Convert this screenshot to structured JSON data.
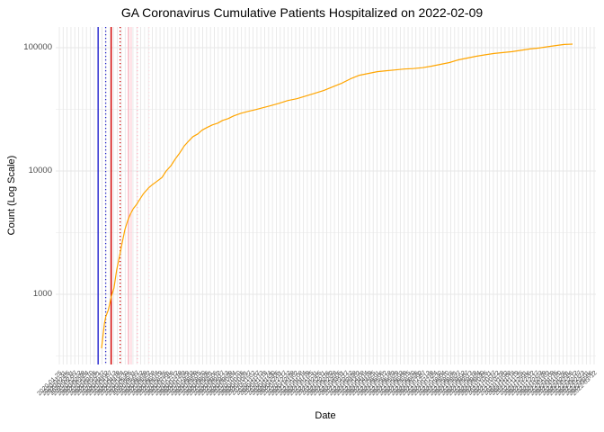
{
  "figure": {
    "title": "GA Coronavirus Cumulative Patients Hospitalized on 2022-02-09",
    "x_axis_title": "Date",
    "y_axis_title": "Count (Log Scale)"
  },
  "colors": {
    "background": "#ffffff",
    "gridline": "#e7e7e7",
    "series_orange": "#FFA500",
    "ref_blue": "#2222CC",
    "ref_red": "#D40000",
    "ref_pink": "#FFB3C0",
    "ref_pink_light": "#FFD9E0",
    "tick_text": "#4d4d4d",
    "title_text": "#000000"
  },
  "chart_data": {
    "type": "line",
    "title": "GA Coronavirus Cumulative Patients Hospitalized on 2022-02-09",
    "xlabel": "Date",
    "ylabel": "Count (Log Scale)",
    "y_scale": "log10",
    "y_ticks": [
      1000,
      10000,
      100000
    ],
    "y_tick_labels": [
      "1000",
      "10000",
      "100000"
    ],
    "ylim": [
      270,
      145000
    ],
    "grid": "major and minor horizontal log gridlines + dense vertical date gridlines, light gray on white",
    "legend_position": "none",
    "x_tick_note": "~139 rotated (45°) date tick labels, heavily overlapping and illegible in the source image; dates below are evenly-spaced estimates",
    "x_ticks_generated": {
      "first_date": "2020-01-25",
      "step_days": 5.63,
      "count": 139
    },
    "x_range_dates": [
      "2020-03-26",
      "2022-02-09"
    ],
    "series": [
      {
        "name": "cumulative-patients-hospitalized",
        "color": "#FFA500",
        "points": [
          [
            "2020-03-26",
            365
          ],
          [
            "2020-03-30",
            575
          ],
          [
            "2020-04-01",
            655
          ],
          [
            "2020-04-05",
            750
          ],
          [
            "2020-04-09",
            950
          ],
          [
            "2020-04-13",
            1125
          ],
          [
            "2020-04-17",
            1575
          ],
          [
            "2020-04-21",
            2025
          ],
          [
            "2020-04-25",
            2610
          ],
          [
            "2020-04-29",
            3355
          ],
          [
            "2020-05-03",
            3970
          ],
          [
            "2020-05-07",
            4470
          ],
          [
            "2020-05-11",
            4935
          ],
          [
            "2020-05-16",
            5360
          ],
          [
            "2020-05-21",
            5930
          ],
          [
            "2020-05-26",
            6555
          ],
          [
            "2020-06-02",
            7250
          ],
          [
            "2020-06-08",
            7755
          ],
          [
            "2020-06-15",
            8290
          ],
          [
            "2020-06-22",
            8870
          ],
          [
            "2020-06-28",
            10000
          ],
          [
            "2020-07-05",
            11070
          ],
          [
            "2020-07-11",
            12490
          ],
          [
            "2020-07-18",
            14090
          ],
          [
            "2020-07-24",
            15900
          ],
          [
            "2020-07-31",
            17600
          ],
          [
            "2020-08-06",
            19000
          ],
          [
            "2020-08-13",
            19980
          ],
          [
            "2020-08-19",
            21400
          ],
          [
            "2020-08-26",
            22500
          ],
          [
            "2020-09-03",
            23640
          ],
          [
            "2020-09-11",
            24450
          ],
          [
            "2020-09-18",
            25710
          ],
          [
            "2020-09-26",
            26590
          ],
          [
            "2020-10-04",
            27960
          ],
          [
            "2020-10-15",
            29420
          ],
          [
            "2020-10-25",
            30420
          ],
          [
            "2020-11-05",
            31460
          ],
          [
            "2020-11-15",
            32540
          ],
          [
            "2020-11-25",
            33650
          ],
          [
            "2020-12-09",
            35410
          ],
          [
            "2020-12-22",
            37260
          ],
          [
            "2021-01-04",
            38550
          ],
          [
            "2021-01-17",
            40560
          ],
          [
            "2021-01-30",
            42670
          ],
          [
            "2021-02-12",
            44900
          ],
          [
            "2021-02-25",
            48020
          ],
          [
            "2021-03-10",
            51370
          ],
          [
            "2021-03-23",
            55860
          ],
          [
            "2021-04-05",
            59780
          ],
          [
            "2021-04-18",
            61800
          ],
          [
            "2021-05-01",
            63900
          ],
          [
            "2021-05-14",
            64980
          ],
          [
            "2021-05-27",
            66070
          ],
          [
            "2021-06-09",
            67180
          ],
          [
            "2021-06-22",
            67750
          ],
          [
            "2021-07-06",
            68900
          ],
          [
            "2021-07-19",
            70870
          ],
          [
            "2021-08-01",
            73290
          ],
          [
            "2021-08-14",
            75790
          ],
          [
            "2021-08-27",
            79740
          ],
          [
            "2021-09-09",
            82480
          ],
          [
            "2021-09-22",
            85310
          ],
          [
            "2021-10-05",
            87500
          ],
          [
            "2021-10-18",
            89740
          ],
          [
            "2021-10-31",
            91260
          ],
          [
            "2021-11-13",
            92810
          ],
          [
            "2021-11-26",
            95190
          ],
          [
            "2021-12-09",
            97630
          ],
          [
            "2021-12-22",
            99290
          ],
          [
            "2022-01-04",
            101830
          ],
          [
            "2022-01-18",
            104430
          ],
          [
            "2022-01-28",
            106200
          ],
          [
            "2022-02-09",
            106900
          ]
        ]
      }
    ],
    "reference_lines": [
      {
        "name": "vline-blue-solid",
        "color": "#2222CC",
        "style": "solid",
        "est_date": "2020-03-21",
        "width": 1.4,
        "opacity": 1
      },
      {
        "name": "vline-blue-dotted",
        "color": "#2222CC",
        "style": "dotted",
        "est_date": "2020-04-01",
        "width": 1.3,
        "opacity": 1
      },
      {
        "name": "vline-red-solid",
        "color": "#D40000",
        "style": "solid",
        "est_date": "2020-04-09",
        "width": 1.4,
        "opacity": 1
      },
      {
        "name": "vline-red-dotted",
        "color": "#D40000",
        "style": "dotted",
        "est_date": "2020-04-22",
        "width": 1.3,
        "opacity": 1
      },
      {
        "name": "vline-pink-solid-1",
        "color": "#FFB3C0",
        "style": "solid",
        "est_date": "2020-05-04",
        "width": 1.3,
        "opacity": 1
      },
      {
        "name": "vline-pink-solid-2",
        "color": "#FFC6D0",
        "style": "solid",
        "est_date": "2020-05-08",
        "width": 1.2,
        "opacity": 0.9
      },
      {
        "name": "vline-pink-dotted-1",
        "color": "#FFB9C6",
        "style": "dotted",
        "est_date": "2020-05-17",
        "width": 1.3,
        "opacity": 1
      },
      {
        "name": "vline-pink-dotted-2",
        "color": "#FFD9E0",
        "style": "dotted",
        "est_date": "2020-06-03",
        "width": 1.2,
        "opacity": 0.9
      }
    ]
  }
}
